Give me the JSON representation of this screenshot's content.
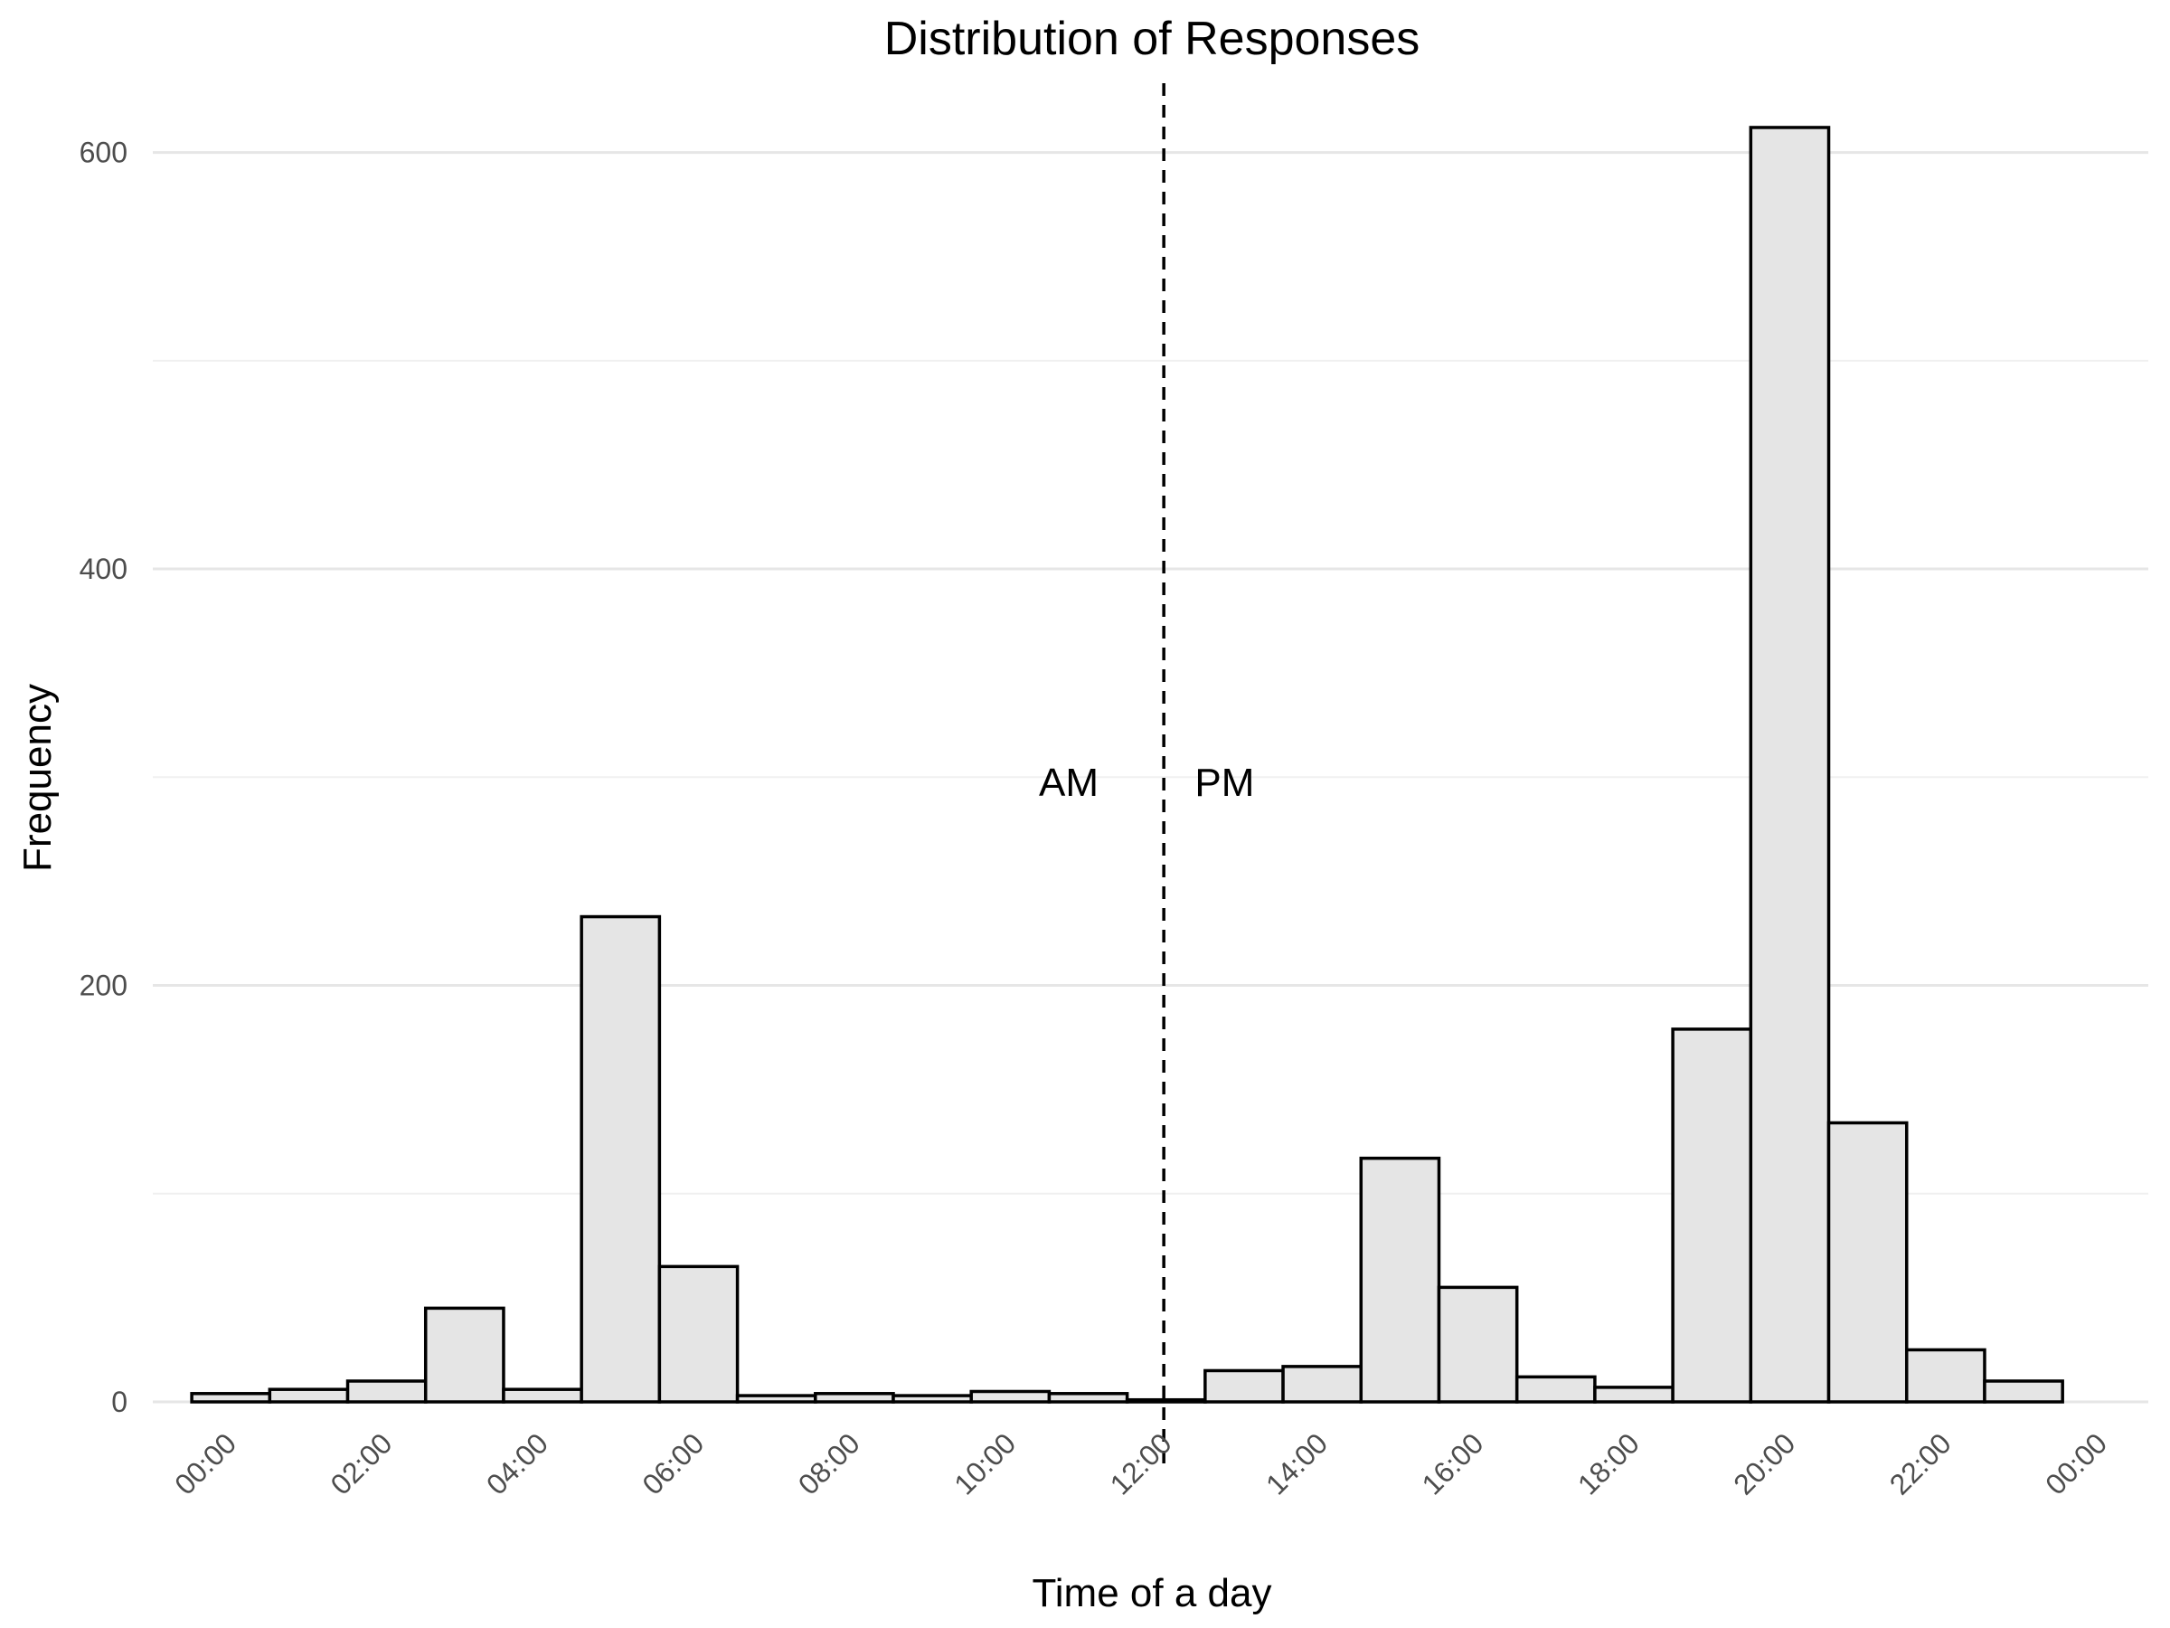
{
  "chart_data": {
    "type": "bar",
    "title": "Distribution of Responses",
    "xlabel": "Time of a day",
    "ylabel": "Frequency",
    "x_unit": "hour of day",
    "x_range_hours": [
      -1.0,
      24.6
    ],
    "ylim": [
      0,
      635
    ],
    "y_ticks": [
      0,
      200,
      400,
      600
    ],
    "y_minor_gridlines": [
      100,
      300,
      500
    ],
    "x_ticks": [
      {
        "hour": 0,
        "label": "00:00"
      },
      {
        "hour": 2,
        "label": "02:00"
      },
      {
        "hour": 4,
        "label": "04:00"
      },
      {
        "hour": 6,
        "label": "06:00"
      },
      {
        "hour": 8,
        "label": "08:00"
      },
      {
        "hour": 10,
        "label": "10:00"
      },
      {
        "hour": 12,
        "label": "12:00"
      },
      {
        "hour": 14,
        "label": "14:00"
      },
      {
        "hour": 16,
        "label": "16:00"
      },
      {
        "hour": 18,
        "label": "18:00"
      },
      {
        "hour": 20,
        "label": "20:00"
      },
      {
        "hour": 22,
        "label": "22:00"
      },
      {
        "hour": 24,
        "label": "00:00"
      }
    ],
    "bin_width_hours": 1,
    "bins": [
      {
        "start": -0.5,
        "value": 4
      },
      {
        "start": 0.5,
        "value": 6
      },
      {
        "start": 1.5,
        "value": 10
      },
      {
        "start": 2.5,
        "value": 45
      },
      {
        "start": 3.5,
        "value": 6
      },
      {
        "start": 4.5,
        "value": 233
      },
      {
        "start": 5.5,
        "value": 65
      },
      {
        "start": 6.5,
        "value": 3
      },
      {
        "start": 7.5,
        "value": 4
      },
      {
        "start": 8.5,
        "value": 3
      },
      {
        "start": 9.5,
        "value": 5
      },
      {
        "start": 10.5,
        "value": 4
      },
      {
        "start": 11.5,
        "value": 1
      },
      {
        "start": 12.5,
        "value": 15
      },
      {
        "start": 13.5,
        "value": 17
      },
      {
        "start": 14.5,
        "value": 117
      },
      {
        "start": 15.5,
        "value": 55
      },
      {
        "start": 16.5,
        "value": 12
      },
      {
        "start": 17.5,
        "value": 7
      },
      {
        "start": 18.5,
        "value": 179
      },
      {
        "start": 19.5,
        "value": 612
      },
      {
        "start": 20.5,
        "value": 134
      },
      {
        "start": 21.5,
        "value": 25
      },
      {
        "start": 22.5,
        "value": 10
      }
    ],
    "vline_hour": 11.97,
    "annotations": [
      {
        "text": "AM",
        "hour": 10.75,
        "value": 298
      },
      {
        "text": "PM",
        "hour": 12.75,
        "value": 298
      }
    ],
    "bar_fill": "#e5e5e5",
    "bar_stroke": "#000000",
    "grid": true,
    "legend": "none"
  }
}
